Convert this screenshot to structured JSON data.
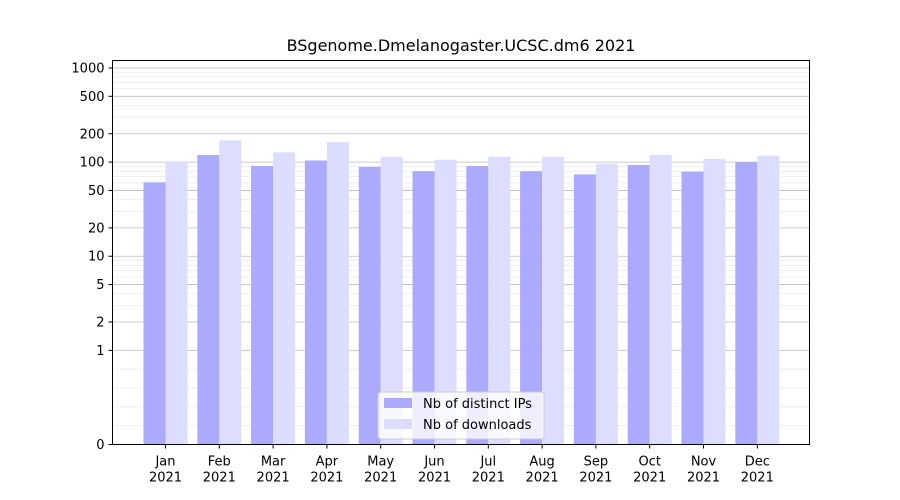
{
  "chart_data": {
    "type": "bar",
    "title": "BSgenome.Dmelanogaster.UCSC.dm6 2021",
    "xlabel": "",
    "ylabel": "",
    "yscale": "symlog",
    "ylim": [
      0,
      1200
    ],
    "yticks": [
      0,
      1,
      2,
      5,
      10,
      20,
      50,
      100,
      200,
      500,
      1000
    ],
    "grid": true,
    "legend_position": "lower-center",
    "categories": [
      "Jan\n2021",
      "Feb\n2021",
      "Mar\n2021",
      "Apr\n2021",
      "May\n2021",
      "Jun\n2021",
      "Jul\n2021",
      "Aug\n2021",
      "Sep\n2021",
      "Oct\n2021",
      "Nov\n2021",
      "Dec\n2021"
    ],
    "series": [
      {
        "name": "Nb of distinct IPs",
        "color": "#aaaaff",
        "values": [
          61,
          119,
          91,
          104,
          89,
          80,
          91,
          80,
          74,
          93,
          79,
          100
        ]
      },
      {
        "name": "Nb of downloads",
        "color": "#ddddff",
        "values": [
          102,
          170,
          127,
          163,
          114,
          106,
          114,
          114,
          96,
          119,
          108,
          117
        ]
      }
    ]
  }
}
